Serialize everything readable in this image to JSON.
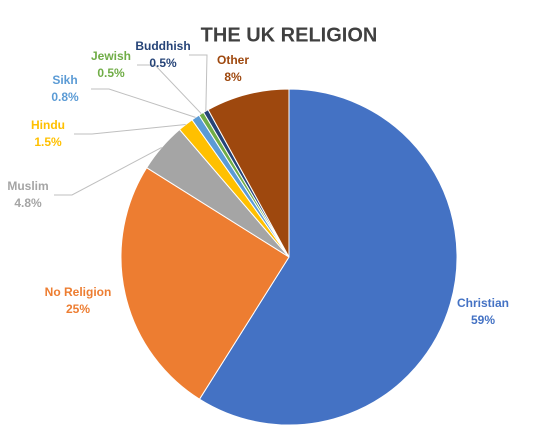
{
  "chart_data": {
    "type": "pie",
    "title": "THE UK RELIGION",
    "categories": [
      "Christian",
      "No Religion",
      "Muslim",
      "Hindu",
      "Sikh",
      "Jewish",
      "Buddhish",
      "Other"
    ],
    "values": [
      59,
      25,
      4.8,
      1.5,
      0.8,
      0.5,
      0.5,
      8
    ],
    "value_labels": [
      "59%",
      "25%",
      "4.8%",
      "1.5%",
      "0.8%",
      "0.5%",
      "0.5%",
      "8%"
    ],
    "colors": [
      "#4472c4",
      "#ed7d31",
      "#a5a5a5",
      "#ffc000",
      "#5b9bd5",
      "#70ad47",
      "#264478",
      "#9e480e"
    ]
  }
}
